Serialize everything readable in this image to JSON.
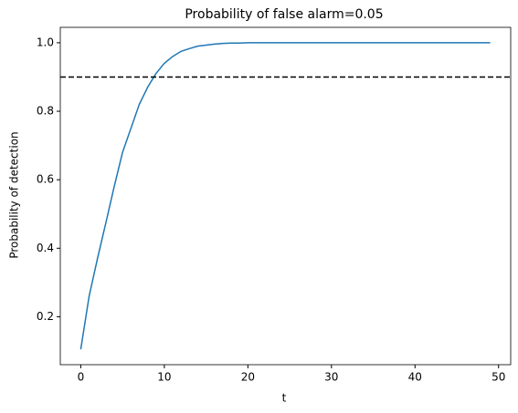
{
  "chart_data": {
    "type": "line",
    "title": "Probability of false alarm=0.05",
    "x_label": "t",
    "y_label": "Probability of detection",
    "x": [
      0,
      1,
      2,
      3,
      4,
      5,
      6,
      7,
      8,
      9,
      10,
      11,
      12,
      13,
      14,
      15,
      16,
      17,
      18,
      19,
      20,
      21,
      22,
      23,
      24,
      25,
      26,
      27,
      28,
      29,
      30,
      31,
      32,
      33,
      34,
      35,
      36,
      37,
      38,
      39,
      40,
      41,
      42,
      43,
      44,
      45,
      46,
      47,
      48,
      49
    ],
    "series": [
      {
        "color": "#1f77b4",
        "values": [
          0.105,
          0.26,
          0.37,
          0.474,
          0.58,
          0.68,
          0.75,
          0.82,
          0.87,
          0.91,
          0.94,
          0.96,
          0.975,
          0.983,
          0.99,
          0.993,
          0.996,
          0.998,
          0.999,
          0.999,
          1.0,
          1.0,
          1.0,
          1.0,
          1.0,
          1.0,
          1.0,
          1.0,
          1.0,
          1.0,
          1.0,
          1.0,
          1.0,
          1.0,
          1.0,
          1.0,
          1.0,
          1.0,
          1.0,
          1.0,
          1.0,
          1.0,
          1.0,
          1.0,
          1.0,
          1.0,
          1.0,
          1.0,
          1.0,
          1.0
        ]
      }
    ],
    "hline": {
      "value": 0.9,
      "color": "#000000",
      "style": "dashed"
    },
    "xlim": [
      -2.45,
      51.45
    ],
    "xticks": [
      0,
      10,
      20,
      30,
      40,
      50
    ],
    "ylim": [
      0.06,
      1.045
    ],
    "yticks": [
      0.2,
      0.4,
      0.6,
      0.8,
      {
        "value": 1.0,
        "label": "1.0"
      }
    ],
    "grid": false
  }
}
